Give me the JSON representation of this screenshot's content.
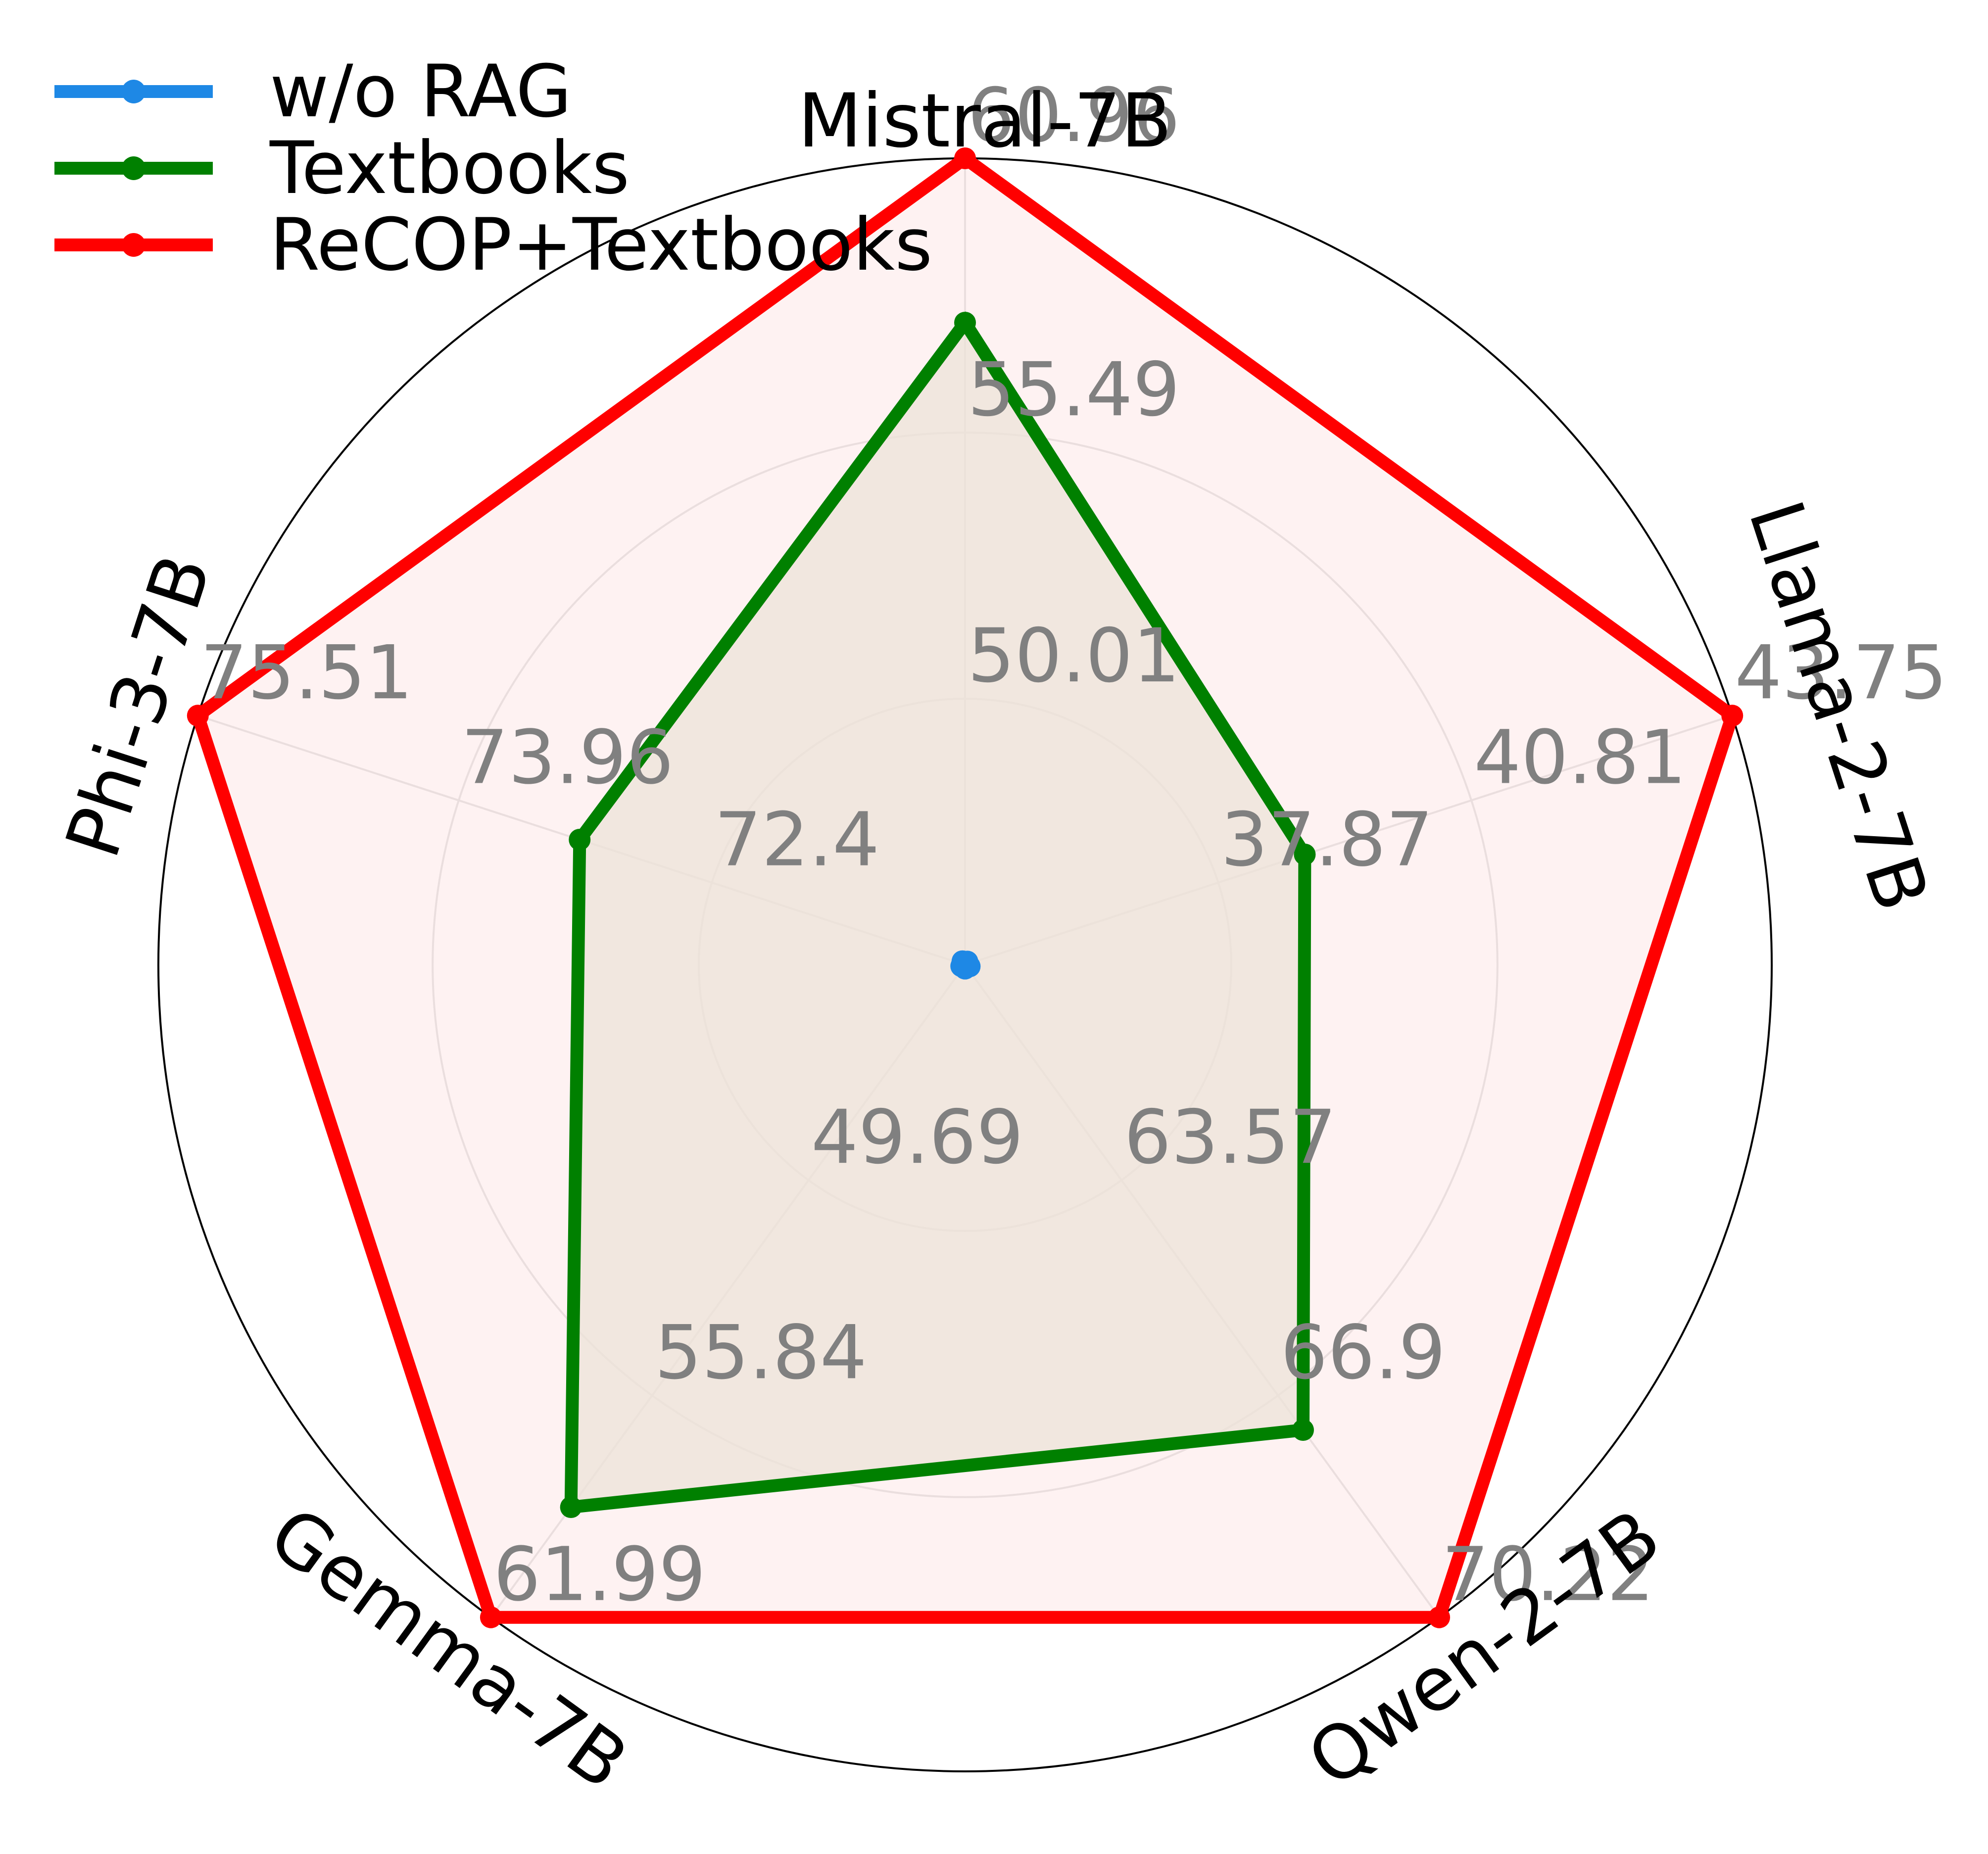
{
  "chart_data": {
    "type": "radar",
    "axes": [
      "Mistral-7B",
      "Llama-2-7B",
      "Qwen-2-7B",
      "Gemma-7B",
      "Phi-3-7B"
    ],
    "ring_labels": [
      [
        "50.01",
        "55.49",
        "60.96"
      ],
      [
        "37.87",
        "40.81",
        "43.75"
      ],
      [
        "63.57",
        "66.9",
        "70.22"
      ],
      [
        "49.69",
        "55.84",
        "61.99"
      ],
      [
        "72.4",
        "73.96",
        "75.51"
      ]
    ],
    "series": [
      {
        "name": "w/o RAG",
        "color": "#1e88e5",
        "fill": "#d7d7de",
        "values": [
          44.54,
          34.93,
          60.24,
          43.54,
          70.84
        ]
      },
      {
        "name": "Textbooks",
        "color": "#008000",
        "fill": "#ece3d8",
        "values": [
          57.63,
          38.86,
          67.37,
          58.89,
          73.2
        ]
      },
      {
        "name": "ReCOP+Textbooks",
        "color": "#ff0000",
        "fill": "#fdeeee",
        "values": [
          60.96,
          43.75,
          70.22,
          61.99,
          75.51
        ]
      }
    ],
    "grid": true,
    "legend": "top-left"
  }
}
